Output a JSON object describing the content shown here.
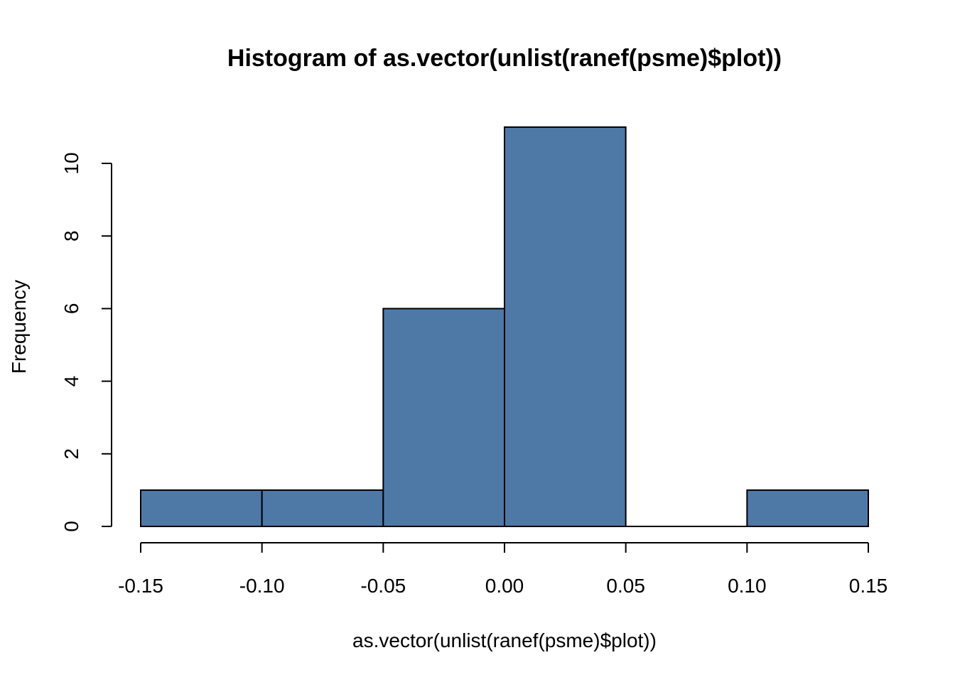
{
  "chart_data": {
    "type": "bar",
    "subtype": "histogram",
    "title": "Histogram of as.vector(unlist(ranef(psme)$plot))",
    "xlabel": "as.vector(unlist(ranef(psme)$plot))",
    "ylabel": "Frequency",
    "bins": [
      {
        "from": -0.15,
        "to": -0.1,
        "count": 1
      },
      {
        "from": -0.1,
        "to": -0.05,
        "count": 1
      },
      {
        "from": -0.05,
        "to": 0.0,
        "count": 6
      },
      {
        "from": 0.0,
        "to": 0.05,
        "count": 11
      },
      {
        "from": 0.05,
        "to": 0.1,
        "count": 0
      },
      {
        "from": 0.1,
        "to": 0.15,
        "count": 1
      }
    ],
    "xlim": [
      -0.15,
      0.15
    ],
    "ylim": [
      0,
      11
    ],
    "x_ticks": [
      -0.15,
      -0.1,
      -0.05,
      0.0,
      0.05,
      0.1,
      0.15
    ],
    "x_tick_labels": [
      "-0.15",
      "-0.10",
      "-0.05",
      "0.00",
      "0.05",
      "0.10",
      "0.15"
    ],
    "y_ticks": [
      0,
      2,
      4,
      6,
      8,
      10
    ],
    "y_tick_labels": [
      "0",
      "2",
      "4",
      "6",
      "8",
      "10"
    ],
    "bar_color": "#4e79a7",
    "edge_color": "#000000",
    "grid": false,
    "legend": "none"
  }
}
